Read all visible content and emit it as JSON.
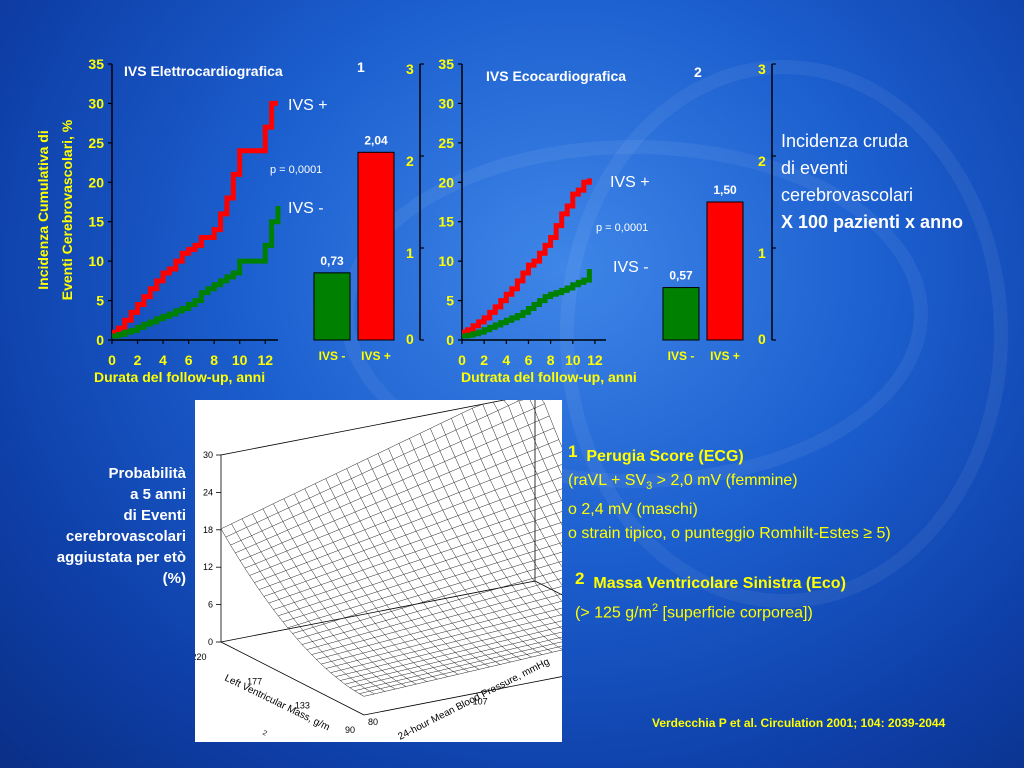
{
  "chart_data": [
    {
      "type": "line",
      "title": "IVS Elettrocardiografica",
      "title_sup": "1",
      "xlabel": "Durata del follow-up, anni",
      "ylabel": "Incidenza Cumulativa di Eventi Cerebrovascolari, %",
      "ylim": [
        0,
        35
      ],
      "xlim": [
        0,
        13
      ],
      "y_ticks": [
        "35",
        "30",
        "25",
        "20",
        "15",
        "10",
        "5",
        "0"
      ],
      "x_ticks": [
        "0",
        "2",
        "4",
        "6",
        "8",
        "10",
        "12"
      ],
      "pvalue": "p = 0,0001",
      "series": [
        {
          "name": "IVS +",
          "color": "#ff0000",
          "x": [
            0,
            0.5,
            1,
            1.5,
            2,
            2.5,
            3,
            3.5,
            4,
            4.5,
            5,
            5.5,
            6,
            6.5,
            7,
            7.5,
            8,
            8.5,
            9,
            9.5,
            10,
            10.5,
            11,
            11.5,
            12,
            12.5,
            13
          ],
          "y": [
            1,
            1.5,
            2.5,
            3.5,
            4.5,
            5.5,
            6.5,
            7.5,
            8.5,
            9,
            10,
            11,
            11.5,
            12,
            13,
            13,
            14,
            16,
            18,
            21,
            24,
            24,
            24,
            24,
            27,
            30,
            30
          ]
        },
        {
          "name": "IVS -",
          "color": "#008000",
          "x": [
            0,
            0.5,
            1,
            1.5,
            2,
            2.5,
            3,
            3.5,
            4,
            4.5,
            5,
            5.5,
            6,
            6.5,
            7,
            7.5,
            8,
            8.5,
            9,
            9.5,
            10,
            10.5,
            11,
            11.5,
            12,
            12.5,
            13
          ],
          "y": [
            0.5,
            0.7,
            1,
            1.2,
            1.6,
            2,
            2.3,
            2.7,
            3,
            3.3,
            3.7,
            4,
            4.5,
            5,
            6,
            6.5,
            7,
            7.5,
            8,
            8.5,
            10,
            10,
            10,
            10,
            12,
            15,
            17
          ]
        }
      ],
      "bars": {
        "ylim": [
          0,
          3
        ],
        "y_ticks": [
          "3",
          "2",
          "1",
          "0"
        ],
        "categories": [
          "IVS -",
          "IVS +"
        ],
        "values": [
          0.73,
          2.04
        ],
        "labels": [
          "0,73",
          "2,04"
        ],
        "colors": [
          "#008000",
          "#ff0000"
        ]
      }
    },
    {
      "type": "line",
      "title": "IVS Ecocardiografica",
      "title_sup": "2",
      "xlabel": "Dutrata del follow-up, anni",
      "ylim": [
        0,
        35
      ],
      "xlim": [
        0,
        13
      ],
      "y_ticks": [
        "35",
        "30",
        "25",
        "20",
        "15",
        "10",
        "5",
        "0"
      ],
      "x_ticks": [
        "0",
        "2",
        "4",
        "6",
        "8",
        "10",
        "12"
      ],
      "pvalue": "p = 0,0001",
      "series": [
        {
          "name": "IVS +",
          "color": "#ff0000",
          "x": [
            0,
            0.5,
            1,
            1.5,
            2,
            2.5,
            3,
            3.5,
            4,
            4.5,
            5,
            5.5,
            6,
            6.5,
            7,
            7.5,
            8,
            8.5,
            9,
            9.5,
            10,
            10.5,
            11,
            11.5
          ],
          "y": [
            1,
            1.3,
            1.8,
            2.3,
            2.8,
            3.5,
            4.2,
            5,
            5.8,
            6.5,
            7.5,
            8.5,
            9.5,
            10,
            11,
            12,
            13,
            14.5,
            16,
            17,
            18.5,
            19,
            20,
            20.5
          ]
        },
        {
          "name": "IVS -",
          "color": "#008000",
          "x": [
            0,
            0.5,
            1,
            1.5,
            2,
            2.5,
            3,
            3.5,
            4,
            4.5,
            5,
            5.5,
            6,
            6.5,
            7,
            7.5,
            8,
            8.5,
            9,
            9.5,
            10,
            10.5,
            11,
            11.5
          ],
          "y": [
            0.5,
            0.6,
            0.8,
            1,
            1.3,
            1.6,
            1.9,
            2.2,
            2.5,
            2.8,
            3.1,
            3.5,
            4,
            4.5,
            5,
            5.5,
            5.8,
            6,
            6.3,
            6.6,
            7,
            7.3,
            7.6,
            9
          ]
        }
      ],
      "bars": {
        "ylim": [
          0,
          3
        ],
        "y_ticks": [
          "3",
          "2",
          "1",
          "0"
        ],
        "categories": [
          "IVS -",
          "IVS +"
        ],
        "values": [
          0.57,
          1.5
        ],
        "labels": [
          "0,57",
          "1,50"
        ],
        "colors": [
          "#008000",
          "#ff0000"
        ]
      }
    },
    {
      "type": "surface",
      "zlim": [
        0,
        30
      ],
      "z_ticks": [
        "30",
        "24",
        "18",
        "12",
        "6",
        "0"
      ],
      "xlabel": "24-hour Mean Blood Pressure, mmHg",
      "x_ticks": [
        "80",
        "107",
        "133",
        "160"
      ],
      "ylabel": "Left Ventricular Mass, g/m",
      "ylabel_sup": "2",
      "y_ticks": [
        "220",
        "177",
        "133",
        "90"
      ]
    }
  ],
  "ylabel_line1": "Incidenza Cumulativa di",
  "ylabel_line2": "Eventi Cerebrovascolari, %",
  "side_note": {
    "line1": "Incidenza cruda",
    "line2": "di eventi",
    "line3": "cerebrovascolari",
    "line4": "X 100 pazienti x anno"
  },
  "probability_label": {
    "line1": "Probabilità",
    "line2": "a 5 anni",
    "line3": "di Eventi",
    "line4": "cerebrovascolari",
    "line5": "aggiustata per etò",
    "line6": "(%)"
  },
  "footnote1": {
    "num": "1",
    "title": "Perugia Score (ECG)",
    "line1_a": "(raVL + SV",
    "line1_sub": "3",
    "line1_b": " > 2,0 mV (femmine)",
    "line2": "o 2,4 mV (maschi)",
    "line3": "o strain tipico, o punteggio Romhilt-Estes ≥ 5)"
  },
  "footnote2": {
    "num": "2",
    "title": "Massa Ventricolare Sinistra (Eco)",
    "line1_a": "(> 125 g/m",
    "line1_sup": "2",
    "line1_b": " [superficie corporea])"
  },
  "citation": "Verdecchia P et al. Circulation 2001; 104: 2039-2044",
  "colors": {
    "accent_yellow": "#ffff00",
    "red": "#ff0000",
    "green": "#008000",
    "background": "#1c5fcf"
  }
}
